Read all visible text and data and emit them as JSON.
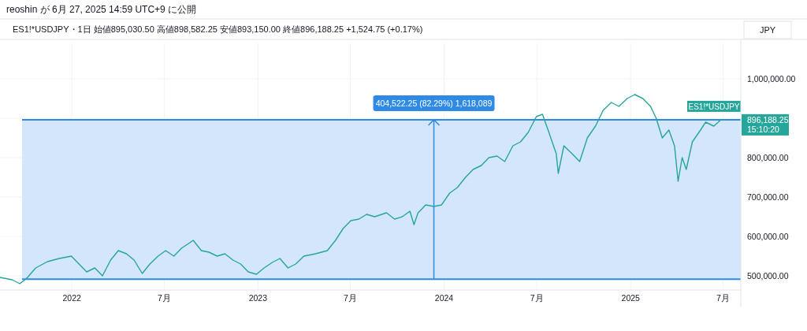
{
  "chart_data": {
    "type": "line",
    "title": "reoshin が 6月 27, 2025 14:59 UTC+9 に公開",
    "subtitle": "ES1!*USDJPY・1日 始値895,030.50 高値898,582.25 安値893,150.00 終値896,188.25 +1,524.75 (+0.17%)",
    "ylabel": "JPY",
    "xlim": [
      "2021-08-13",
      "2025-08-05"
    ],
    "xticks": [
      {
        "value": "2022-01-01",
        "label": "2022"
      },
      {
        "value": "2022-07-01",
        "label": "7月"
      },
      {
        "value": "2023-01-01",
        "label": "2023"
      },
      {
        "value": "2023-07-01",
        "label": "7月"
      },
      {
        "value": "2024-01-01",
        "label": "2024"
      },
      {
        "value": "2024-07-01",
        "label": "7月"
      },
      {
        "value": "2025-01-01",
        "label": "2025"
      },
      {
        "value": "2025-07-01",
        "label": "7月"
      }
    ],
    "ylim": [
      464000,
      1090000
    ],
    "yticks": [
      {
        "value": 500000,
        "label": "500,000.00"
      },
      {
        "value": 600000,
        "label": "600,000.00"
      },
      {
        "value": 700000,
        "label": "700,000.00"
      },
      {
        "value": 800000,
        "label": "800,000.00"
      },
      {
        "value": 900000,
        "label": null
      },
      {
        "value": 1000000,
        "label": "1,000,000.00"
      }
    ],
    "grid": true,
    "bands": [
      {
        "axis": "y",
        "from": 491666,
        "to": 896188.25,
        "color": "#d3e6fa"
      }
    ],
    "ref_lines": [
      {
        "axis": "y",
        "value": 491666,
        "color": "#2f8ae5"
      },
      {
        "axis": "y",
        "value": 896188.25,
        "color": "#2f8ae5"
      },
      {
        "axis": "x",
        "value": "2023-12-12",
        "color": "#2f8ae5"
      }
    ],
    "annotations": [
      {
        "text": "404,522.25 (82.29%) 1,618,089",
        "x": "2023-12-12",
        "y": 896188.25
      },
      "896,188.25",
      "15:10:20"
    ],
    "series": [
      {
        "name": "ES1!*USDJPY",
        "color": "#26a69a",
        "x": [
          "2021-08-13",
          "2021-09-06",
          "2021-09-21",
          "2021-10-06",
          "2021-10-22",
          "2021-11-14",
          "2021-12-07",
          "2021-12-31",
          "2022-01-15",
          "2022-01-30",
          "2022-02-15",
          "2022-03-02",
          "2022-03-18",
          "2022-04-02",
          "2022-04-18",
          "2022-05-03",
          "2022-05-19",
          "2022-06-03",
          "2022-06-19",
          "2022-07-04",
          "2022-07-20",
          "2022-08-04",
          "2022-08-27",
          "2022-09-12",
          "2022-09-27",
          "2022-10-13",
          "2022-10-28",
          "2022-11-13",
          "2022-11-28",
          "2022-12-13",
          "2022-12-29",
          "2023-01-13",
          "2023-01-29",
          "2023-02-13",
          "2023-03-01",
          "2023-03-16",
          "2023-04-01",
          "2023-04-24",
          "2023-05-17",
          "2023-06-02",
          "2023-06-17",
          "2023-07-02",
          "2023-07-18",
          "2023-08-02",
          "2023-08-18",
          "2023-09-10",
          "2023-09-26",
          "2023-10-11",
          "2023-10-26",
          "2023-11-03",
          "2023-11-11",
          "2023-11-26",
          "2023-12-12",
          "2023-12-27",
          "2024-01-12",
          "2024-01-27",
          "2024-02-12",
          "2024-02-27",
          "2024-03-14",
          "2024-03-29",
          "2024-04-14",
          "2024-04-29",
          "2024-05-15",
          "2024-05-30",
          "2024-06-14",
          "2024-06-30",
          "2024-07-12",
          "2024-07-23",
          "2024-08-08",
          "2024-08-12",
          "2024-08-23",
          "2024-09-08",
          "2024-09-23",
          "2024-10-08",
          "2024-10-24",
          "2024-11-08",
          "2024-11-24",
          "2024-12-09",
          "2024-12-25",
          "2025-01-09",
          "2025-01-25",
          "2025-02-09",
          "2025-02-20",
          "2025-03-04",
          "2025-03-17",
          "2025-03-28",
          "2025-04-04",
          "2025-04-12",
          "2025-04-20",
          "2025-05-02",
          "2025-05-18",
          "2025-05-28",
          "2025-06-13",
          "2025-06-27"
        ],
        "values": [
          496000,
          490000,
          480000,
          496000,
          520000,
          536000,
          544000,
          550000,
          530000,
          510000,
          520000,
          500000,
          540000,
          564000,
          556000,
          540000,
          506000,
          530000,
          550000,
          564000,
          550000,
          570000,
          590000,
          564000,
          560000,
          550000,
          556000,
          540000,
          530000,
          510000,
          504000,
          520000,
          534000,
          544000,
          520000,
          530000,
          550000,
          556000,
          564000,
          590000,
          620000,
          640000,
          644000,
          656000,
          650000,
          660000,
          644000,
          650000,
          664000,
          630000,
          660000,
          680000,
          676000,
          680000,
          710000,
          724000,
          750000,
          770000,
          780000,
          800000,
          804000,
          790000,
          830000,
          840000,
          864000,
          904000,
          910000,
          870000,
          810000,
          760000,
          830000,
          810000,
          790000,
          850000,
          880000,
          920000,
          940000,
          930000,
          950000,
          960000,
          950000,
          930000,
          900000,
          850000,
          870000,
          830000,
          740000,
          800000,
          770000,
          840000,
          870000,
          890000,
          880000,
          896188.25
        ]
      }
    ]
  }
}
